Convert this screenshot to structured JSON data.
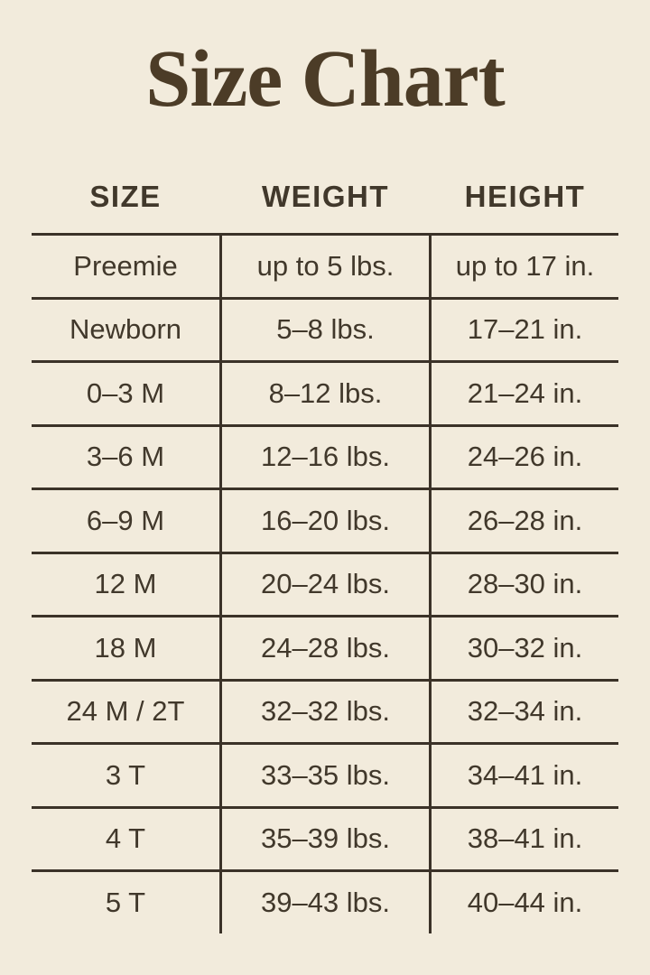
{
  "title": "Size Chart",
  "colors": {
    "background": "#f2ebdc",
    "text": "#41382b",
    "title": "#4c3c27",
    "line": "#3b3228"
  },
  "chart_data": {
    "type": "table",
    "title": "Size Chart",
    "columns": [
      "SIZE",
      "WEIGHT",
      "HEIGHT"
    ],
    "rows": [
      [
        "Preemie",
        "up to 5 lbs.",
        "up to 17 in."
      ],
      [
        "Newborn",
        "5–8 lbs.",
        "17–21 in."
      ],
      [
        "0–3 M",
        "8–12 lbs.",
        "21–24 in."
      ],
      [
        "3–6 M",
        "12–16 lbs.",
        "24–26 in."
      ],
      [
        "6–9 M",
        "16–20 lbs.",
        "26–28 in."
      ],
      [
        "12 M",
        "20–24 lbs.",
        "28–30 in."
      ],
      [
        "18 M",
        "24–28 lbs.",
        "30–32 in."
      ],
      [
        "24 M / 2T",
        "32–32 lbs.",
        "32–34 in."
      ],
      [
        "3 T",
        "33–35 lbs.",
        "34–41 in."
      ],
      [
        "4 T",
        "35–39 lbs.",
        "38–41 in."
      ],
      [
        "5 T",
        "39–43 lbs.",
        "40–44 in."
      ]
    ],
    "layout": {
      "grid": "horizontal rules between all rows, no outer frame, no bottom rule; vertical rules flank the middle column only",
      "legend_position": "none"
    }
  }
}
